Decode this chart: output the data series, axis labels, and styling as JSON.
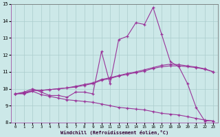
{
  "xlabel": "Windchill (Refroidissement éolien,°C)",
  "bg_color": "#cce8e8",
  "grid_color": "#aacccc",
  "line_color": "#993399",
  "xlim": [
    -0.5,
    23.5
  ],
  "ylim": [
    8,
    15
  ],
  "xticks": [
    0,
    1,
    2,
    3,
    4,
    5,
    6,
    7,
    8,
    9,
    10,
    11,
    12,
    13,
    14,
    15,
    16,
    17,
    18,
    19,
    20,
    21,
    22,
    23
  ],
  "yticks": [
    8,
    9,
    10,
    11,
    12,
    13,
    14,
    15
  ],
  "line1": [
    9.7,
    9.8,
    10.0,
    9.8,
    9.6,
    9.6,
    9.5,
    9.8,
    9.8,
    9.7,
    12.2,
    10.3,
    12.9,
    13.1,
    13.9,
    13.8,
    14.8,
    13.2,
    11.6,
    11.3,
    10.3,
    8.9,
    8.1,
    8.1
  ],
  "line2": [
    9.7,
    9.7,
    9.85,
    9.65,
    9.55,
    9.45,
    9.35,
    9.3,
    9.25,
    9.2,
    9.1,
    9.0,
    8.9,
    8.85,
    8.8,
    8.75,
    8.65,
    8.55,
    8.5,
    8.45,
    8.35,
    8.25,
    8.15,
    8.1
  ],
  "line3": [
    9.7,
    9.75,
    9.9,
    9.9,
    9.95,
    10.0,
    10.05,
    10.1,
    10.2,
    10.3,
    10.5,
    10.6,
    10.75,
    10.85,
    10.95,
    11.05,
    11.2,
    11.3,
    11.35,
    11.35,
    11.3,
    11.25,
    11.15,
    11.0
  ],
  "line4": [
    9.7,
    9.75,
    9.9,
    9.9,
    9.95,
    10.0,
    10.05,
    10.15,
    10.25,
    10.35,
    10.55,
    10.65,
    10.78,
    10.9,
    11.0,
    11.12,
    11.25,
    11.38,
    11.45,
    11.42,
    11.35,
    11.28,
    11.18,
    11.0
  ]
}
